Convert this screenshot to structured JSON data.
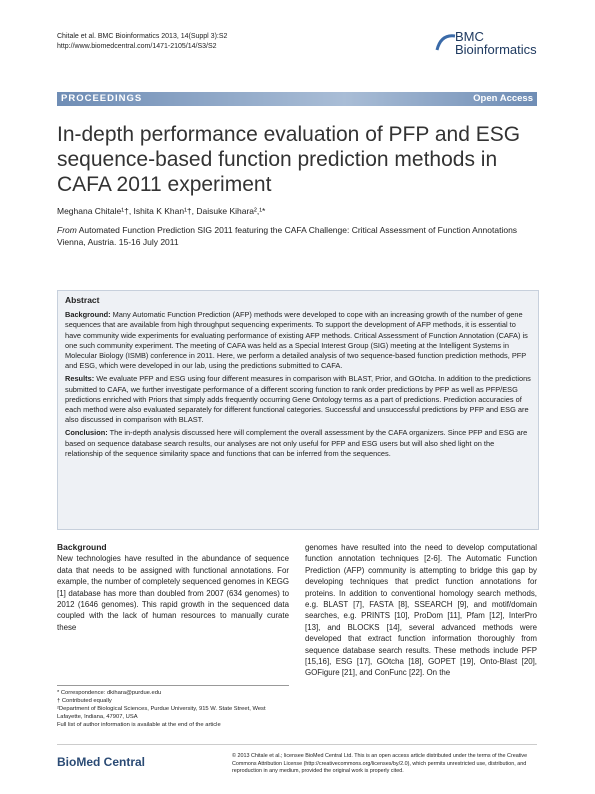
{
  "header": {
    "citation": "Chitale et al. BMC Bioinformatics 2013, 14(Suppl 3):S2",
    "url": "http://www.biomedcentral.com/1471-2105/14/S3/S2",
    "logo_line1": "BMC",
    "logo_line2": "Bioinformatics"
  },
  "banner": {
    "left": "PROCEEDINGS",
    "right": "Open Access"
  },
  "title": "In-depth performance evaluation of PFP and ESG sequence-based function prediction methods in CAFA 2011 experiment",
  "authors": "Meghana Chitale¹†, Ishita K Khan¹†, Daisuke Kihara²,¹*",
  "source": {
    "from_label": "From",
    "from_text": "Automated Function Prediction SIG 2011 featuring the CAFA Challenge: Critical Assessment of Function Annotations",
    "place": "Vienna, Austria. 15-16 July 2011"
  },
  "abstract": {
    "heading": "Abstract",
    "paragraphs": [
      {
        "label": "Background:",
        "text": "Many Automatic Function Prediction (AFP) methods were developed to cope with an increasing growth of the number of gene sequences that are available from high throughput sequencing experiments. To support the development of AFP methods, it is essential to have community wide experiments for evaluating performance of existing AFP methods. Critical Assessment of Function Annotation (CAFA) is one such community experiment. The meeting of CAFA was held as a Special Interest Group (SIG) meeting at the Intelligent Systems in Molecular Biology (ISMB) conference in 2011. Here, we perform a detailed analysis of two sequence-based function prediction methods, PFP and ESG, which were developed in our lab, using the predictions submitted to CAFA."
      },
      {
        "label": "Results:",
        "text": "We evaluate PFP and ESG using four different measures in comparison with BLAST, Prior, and GOtcha. In addition to the predictions submitted to CAFA, we further investigate performance of a different scoring function to rank order predictions by PFP as well as PFP/ESG predictions enriched with Priors that simply adds frequently occurring Gene Ontology terms as a part of predictions. Prediction accuracies of each method were also evaluated separately for different functional categories. Successful and unsuccessful predictions by PFP and ESG are also discussed in comparison with BLAST."
      },
      {
        "label": "Conclusion:",
        "text": "The in-depth analysis discussed here will complement the overall assessment by the CAFA organizers. Since PFP and ESG are based on sequence database search results, our analyses are not only useful for PFP and ESG users but will also shed light on the relationship of the sequence similarity space and functions that can be inferred from the sequences."
      }
    ]
  },
  "body": {
    "heading": "Background",
    "left_text": "New technologies have resulted in the abundance of sequence data that needs to be assigned with functional annotations. For example, the number of completely sequenced genomes in KEGG [1] database has more than doubled from 2007 (634 genomes) to 2012 (1646 genomes). This rapid growth in the sequenced data coupled with the lack of human resources to manually curate these",
    "right_text": "genomes have resulted into the need to develop computational function annotation techniques [2-6]. The Automatic Function Prediction (AFP) community is attempting to bridge this gap by developing techniques that predict function annotations for proteins. In addition to conventional homology search methods, e.g. BLAST [7], FASTA [8], SSEARCH [9], and motif/domain searches, e.g. PRINTS [10], ProDom [11], Pfam [12], InterPro [13], and BLOCKS [14], several advanced methods were developed that extract function information thoroughly from sequence database search results. These methods include PFP [15,16], ESG [17], GOtcha [18], GOPET [19], Onto-Blast [20], GOFigure [21], and ConFunc [22]. On the"
  },
  "footnotes": [
    "* Correspondence: dkihara@purdue.edu",
    "† Contributed equally",
    "²Department of Biological Sciences, Purdue University, 915 W. State Street, West Lafayette, Indiana, 47907, USA",
    "Full list of author information is available at the end of the article"
  ],
  "footer": {
    "logo": "BioMed Central",
    "license": "© 2013 Chitale et al.; licensee BioMed Central Ltd. This is an open access article distributed under the terms of the Creative Commons Attribution License (http://creativecommons.org/licenses/by/2.0), which permits unrestricted use, distribution, and reproduction in any medium, provided the original work is properly cited."
  }
}
